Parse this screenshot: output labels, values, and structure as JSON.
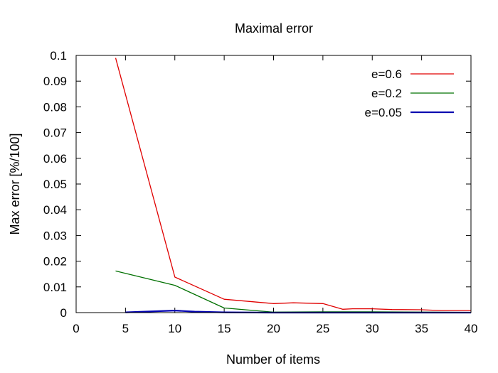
{
  "chart_data": {
    "type": "line",
    "title": "Maximal error",
    "xlabel": "Number of items",
    "ylabel": "Max error [%/100]",
    "xlim": [
      0,
      40
    ],
    "ylim": [
      0,
      0.1
    ],
    "xticks": [
      "0",
      "5",
      "10",
      "15",
      "20",
      "25",
      "30",
      "35",
      "40"
    ],
    "yticks": [
      "0",
      "0.01",
      "0.02",
      "0.03",
      "0.04",
      "0.05",
      "0.06",
      "0.07",
      "0.08",
      "0.09",
      "0.1"
    ],
    "grid": false,
    "legend_position": "top-right",
    "series": [
      {
        "name": "e=0.6",
        "color": "#e00000",
        "x": [
          4,
          10,
          15,
          20,
          22,
          25,
          27,
          28,
          30,
          32,
          35,
          37,
          40
        ],
        "y": [
          0.099,
          0.0138,
          0.0052,
          0.0035,
          0.0038,
          0.0035,
          0.0013,
          0.0015,
          0.0015,
          0.0012,
          0.0011,
          0.0008,
          0.0008
        ]
      },
      {
        "name": "e=0.2",
        "color": "#007000",
        "x": [
          4,
          10,
          15,
          20,
          25,
          30,
          35,
          40
        ],
        "y": [
          0.0162,
          0.0106,
          0.0018,
          0.0002,
          0.0003,
          0.0003,
          0.0002,
          0.0001
        ]
      },
      {
        "name": "e=0.05",
        "color": "#0000b0",
        "x": [
          5,
          7,
          10,
          12,
          15,
          20,
          25,
          30,
          35,
          40
        ],
        "y": [
          0.0001,
          0.0004,
          0.0008,
          0.0004,
          0.0001,
          0.0,
          0.0,
          0.0,
          0.0,
          0.0
        ]
      }
    ]
  }
}
